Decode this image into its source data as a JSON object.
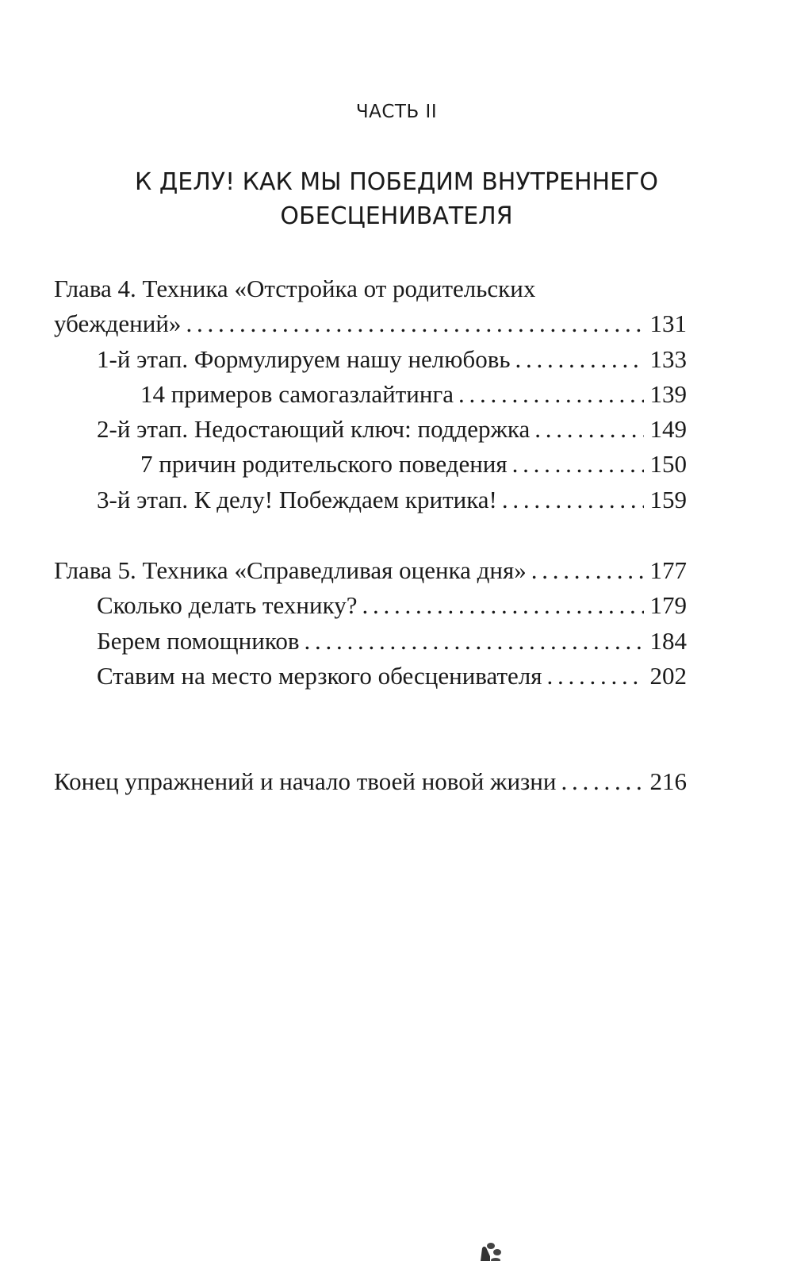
{
  "part_label": "ЧАСТЬ II",
  "part_title": [
    "К ДЕЛУ! КАК МЫ ПОБЕДИМ ВНУТРЕННЕГО",
    "ОБЕСЦЕНИВАТЕЛЯ"
  ],
  "chapter4": {
    "title_line1": "Глава 4. Техника «Отстройка от родительских",
    "title_line2": "убеждений»",
    "page": "131",
    "entries": [
      {
        "text": "1-й этап. Формулируем нашу нелюбовь",
        "page": "133"
      },
      {
        "text": "14 примеров самогазлайтинга",
        "page": "139"
      },
      {
        "text": "2-й этап. Недостающий ключ: поддержка",
        "page": "149"
      },
      {
        "text": "7 причин родительского поведения",
        "page": "150"
      },
      {
        "text": "3-й этап. К делу! Побеждаем критика!",
        "page": "159"
      }
    ]
  },
  "chapter5": {
    "title": "Глава 5. Техника «Справедливая оценка дня»",
    "page": "177",
    "entries": [
      {
        "text": "Сколько делать технику?",
        "page": "179"
      },
      {
        "text": "Берем помощников",
        "page": "184"
      },
      {
        "text": "Ставим на место мерзкого обесценивателя",
        "page": "202"
      }
    ]
  },
  "ending": {
    "text": "Конец упражнений и начало твоей новой жизни",
    "page": "216"
  },
  "decoration_icon": "paw-print-icon"
}
